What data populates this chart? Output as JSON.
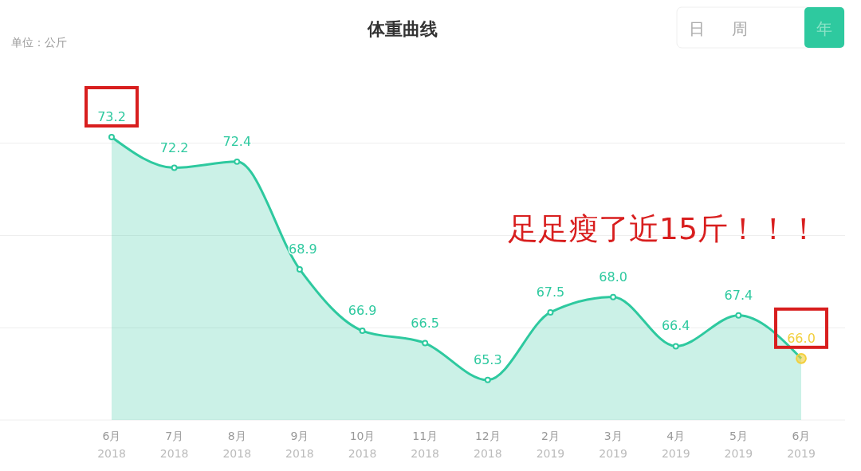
{
  "chart_data": {
    "type": "area",
    "title": "体重曲线",
    "subtitle": "单位：公斤",
    "categories": [
      "6月\n2018",
      "7月\n2018",
      "8月\n2018",
      "9月\n2018",
      "10月\n2018",
      "11月\n2018",
      "12月\n2018",
      "2月\n2019",
      "3月\n2019",
      "4月\n2019",
      "5月\n2019",
      "6月\n2019"
    ],
    "series": [
      {
        "color": "#2ec99f",
        "colors": [
          "#2ec99f",
          "#2ec99f",
          "#2ec99f",
          "#2ec99f",
          "#2ec99f",
          "#2ec99f",
          "#2ec99f",
          "#2ec99f",
          "#2ec99f",
          "#2ec99f",
          "#2ec99f",
          "#f2cf3b"
        ],
        "values": [
          73.2,
          72.2,
          72.4,
          68.9,
          66.9,
          66.5,
          65.3,
          67.5,
          68.0,
          66.4,
          67.4,
          66.0
        ],
        "value_labels": [
          "73.2",
          "72.2",
          "72.4",
          "68.9",
          "66.9",
          "66.5",
          "65.3",
          "67.5",
          "68.0",
          "66.4",
          "67.4",
          "66.0"
        ]
      }
    ],
    "yticks": [
      {
        "value": 64,
        "label": null
      },
      {
        "value": 67,
        "label": null
      },
      {
        "value": 70,
        "label": null
      },
      {
        "value": 73,
        "label": null
      }
    ],
    "grid": "y",
    "tick_labels": "x",
    "marker": "circle",
    "annotations": [
      "足足瘦了近15斤！！！",
      "日",
      "周",
      "年"
    ]
  }
}
